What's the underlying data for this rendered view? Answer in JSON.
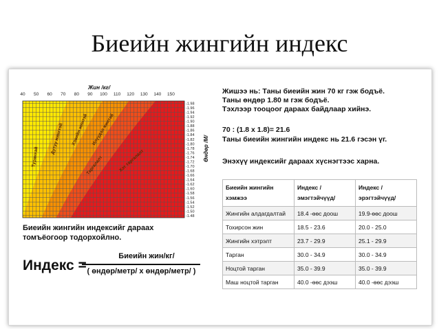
{
  "title": "Биеийн жингийн индекс",
  "chart_data": {
    "type": "heatmap",
    "xlabel": "Жин /кг/",
    "ylabel": "Өндөр /М/",
    "x_ticks": [
      40,
      50,
      60,
      70,
      80,
      90,
      100,
      110,
      120,
      130,
      140,
      150
    ],
    "x_range": [
      40,
      160
    ],
    "y_ticks": [
      "1.98",
      "1.96",
      "1.94",
      "1.92",
      "1.90",
      "1.88",
      "1.86",
      "1.84",
      "1.82",
      "1.80",
      "1.78",
      "1.76",
      "1.74",
      "1.72",
      "1.70",
      "1.68",
      "1.66",
      "1.64",
      "1.62",
      "1.60",
      "1.58",
      "1.56",
      "1.54",
      "1.52",
      "1.50",
      "1.48"
    ],
    "y_range": [
      1.47,
      1.99
    ],
    "zones": [
      {
        "name": "Туранхай",
        "color": "#ffe900",
        "bmi_max": 18.5
      },
      {
        "name": "Хэвийн жинтэй",
        "color": "#fdc000",
        "bmi_max": 25
      },
      {
        "name": "Илүүдэл жинтэй",
        "color": "#f79000",
        "bmi_max": 30
      },
      {
        "name": "Таргалалт",
        "color": "#f04c1a",
        "bmi_max": 35
      },
      {
        "name": "Хэт таргалалт",
        "color": "#e41a1c",
        "bmi_max": 100
      }
    ],
    "zone_labels": [
      "Туранхай",
      "Дутуу жингтэй",
      "Хэвийн жинтэй",
      "Илүүдэл жинтэй",
      "Таргалалт",
      "Хэт таргалалт"
    ],
    "grid": true
  },
  "example": {
    "line1": "Жишээ нь: Таны биеийн жин 70 кг гэж бодъё.",
    "line2": "Таны өндөр 1.80 м гэж бодъё.",
    "line3": "Тэхлээр тооцоог дараах байдлаар хийнэ.",
    "calc": "70 : (1.8 x 1.8)= 21.6",
    "result": "Таны биеийн жингийн индекс нь 21.6 гэсэн үг.",
    "note": "Энэхүү индексийг дараах хүснэгтээс харна."
  },
  "table": {
    "headers": [
      "Биеийн жингийн хэмжээ",
      "Индекс /эмэгтэйчүүд/",
      "Индекс /эрэгтэйчүүд/"
    ],
    "rows": [
      [
        "Жингийн алдагдалтай",
        "18.4 -өөс доош",
        "19.9-өөс доош"
      ],
      [
        "Тохирсон жин",
        "18.5 - 23.6",
        "20.0 - 25.0"
      ],
      [
        "Жингийн хэтрэлт",
        "23.7 - 29.9",
        "25.1 - 29.9"
      ],
      [
        "Тарган",
        "30.0 - 34.9",
        "30.0 - 34.9"
      ],
      [
        "Ноцтой тарган",
        "35.0 - 39.9",
        "35.0 - 39.9"
      ],
      [
        "Маш ноцтой тарган",
        "40.0 -өөс дээш",
        "40.0 -өөс дээш"
      ]
    ]
  },
  "explanation": {
    "line1": "Биеийн жингийн индексийг дараах",
    "line2": "томъёогоор тодорхойлно."
  },
  "formula": {
    "lhs": "Индекс =",
    "numerator": "Биеийн жин/кг/",
    "denominator": "( өндөр/метр/ х өндөр/метр/ )"
  }
}
